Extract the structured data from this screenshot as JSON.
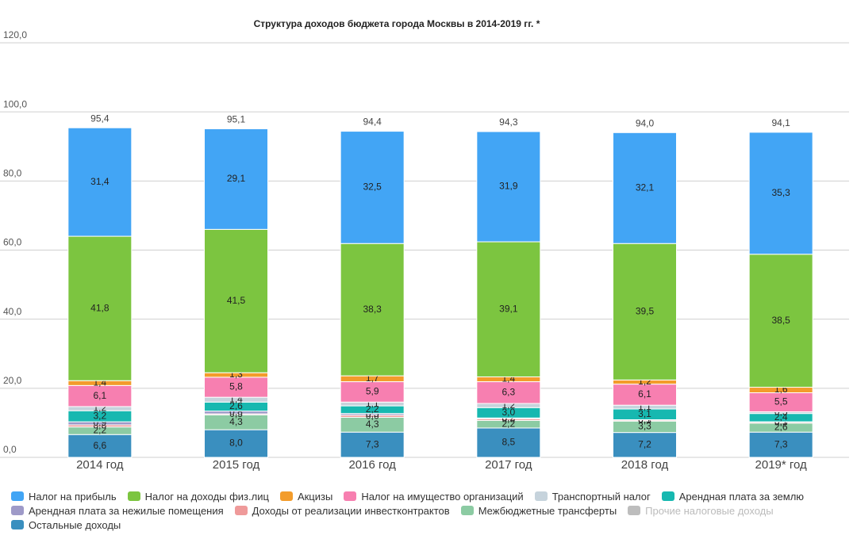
{
  "chart_data": {
    "type": "stacked-bar",
    "title": "Структура доходов бюджета города Москвы в 2014-2019 гг. *",
    "categories": [
      "2014 год",
      "2015 год",
      "2016 год",
      "2017 год",
      "2018 год",
      "2019* год"
    ],
    "ylim": [
      0,
      120
    ],
    "yticks": [
      {
        "value": 0,
        "label": "0,0"
      },
      {
        "value": 20,
        "label": "20,0"
      },
      {
        "value": 40,
        "label": "40,0"
      },
      {
        "value": 60,
        "label": "60,0"
      },
      {
        "value": 80,
        "label": "80,0"
      },
      {
        "value": 100,
        "label": "100,0"
      },
      {
        "value": 120,
        "label": "120,0"
      }
    ],
    "grid": true,
    "totals": {
      "values": [
        95.4,
        95.1,
        94.4,
        94.3,
        94.0,
        94.1
      ],
      "value_labels": [
        "95,4",
        "95,1",
        "94,4",
        "94,3",
        "94,0",
        "94,1"
      ]
    },
    "series": [
      {
        "name": "Налог на прибыль",
        "color": "#42a5f5",
        "values": [
          31.4,
          29.1,
          32.5,
          31.9,
          32.1,
          35.3
        ],
        "value_labels": [
          "31,4",
          "29,1",
          "32,5",
          "31,9",
          "32,1",
          "35,3"
        ]
      },
      {
        "name": "Налог на доходы физ.лиц",
        "color": "#7cc540",
        "values": [
          41.8,
          41.5,
          38.3,
          39.1,
          39.5,
          38.5
        ],
        "value_labels": [
          "41,8",
          "41,5",
          "38,3",
          "39,1",
          "39,5",
          "38,5"
        ]
      },
      {
        "name": "Акцизы",
        "color": "#f39c2b",
        "values": [
          1.4,
          1.3,
          1.7,
          1.4,
          1.2,
          1.6
        ],
        "value_labels": [
          "1,4",
          "1,3",
          "1,7",
          "1,4",
          "1,2",
          "1,6"
        ]
      },
      {
        "name": "Налог на имущество организаций",
        "color": "#f77fb0",
        "values": [
          6.1,
          5.8,
          5.9,
          6.3,
          6.1,
          5.5
        ],
        "value_labels": [
          "6,1",
          "5,8",
          "5,9",
          "6,3",
          "6,1",
          "5,5"
        ]
      },
      {
        "name": "Транспортный налог",
        "color": "#c6d3dc",
        "values": [
          1.2,
          1.4,
          1.1,
          1.2,
          1.1,
          0.5
        ],
        "value_labels": [
          "1,2",
          "1,4",
          "1,1",
          "1,2",
          "1,1",
          "0,5"
        ]
      },
      {
        "name": "Арендная плата за землю",
        "color": "#17b8b0",
        "values": [
          3.2,
          2.6,
          2.2,
          3.0,
          3.1,
          2.4
        ],
        "value_labels": [
          "3,2",
          "2,6",
          "2,2",
          "3,0",
          "3,1",
          "2,4"
        ]
      },
      {
        "name": "Арендная плата за нежилые помещения",
        "color": "#9e9ac8",
        "values": [
          0.9,
          0.8,
          0.5,
          0.2,
          0.1,
          0.1
        ],
        "value_labels": [
          "0,9",
          "0,8",
          "0,5",
          "0,2",
          "0,1",
          "0,1"
        ]
      },
      {
        "name": "Доходы от реализации инвестконтрактов",
        "color": "#ef9a9a",
        "values": [
          0.6,
          0.3,
          0.6,
          0.5,
          0.3,
          0.3
        ],
        "value_labels": [
          "0,6",
          "0,3",
          "0,6",
          "0,5",
          "0,3",
          "0,3"
        ]
      },
      {
        "name": "Межбюджетные трансферты",
        "color": "#8ccba3",
        "values": [
          2.2,
          4.3,
          4.3,
          2.2,
          3.3,
          2.6
        ],
        "value_labels": [
          "2,2",
          "4,3",
          "4,3",
          "2,2",
          "3,3",
          "2,6"
        ]
      },
      {
        "name": "Прочие налоговые доходы",
        "color": "#bdbdbd",
        "hidden": true,
        "values": [
          null,
          null,
          null,
          null,
          null,
          null
        ]
      },
      {
        "name": "Остальные доходы",
        "color": "#3a8fbf",
        "values": [
          6.6,
          8.0,
          7.3,
          8.5,
          7.2,
          7.3
        ],
        "value_labels": [
          "6,6",
          "8,0",
          "7,3",
          "8,5",
          "7,2",
          "7,3"
        ]
      }
    ]
  }
}
